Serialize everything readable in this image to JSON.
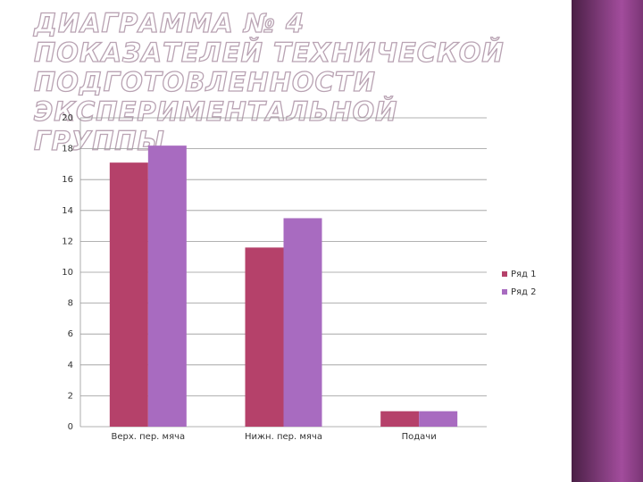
{
  "chart_data": {
    "type": "bar",
    "title": "ДИАГРАММА № 4 ПОКАЗАТЕЛЕЙ ТЕХНИЧЕСКОЙ ПОДГОТОВЛЕННОСТИ ЭКСПЕРИМЕНТАЛЬНОЙ ГРУППЫ",
    "categories": [
      "Верх. пер. мяча",
      "Нижн. пер. мяча",
      "Подачи"
    ],
    "series": [
      {
        "name": "Ряд 1",
        "color": "#b5416a",
        "values": [
          17.1,
          11.6,
          1
        ]
      },
      {
        "name": "Ряд 2",
        "color": "#a86bc0",
        "values": [
          18.2,
          13.5,
          1
        ]
      }
    ],
    "ylim": [
      0,
      20
    ],
    "yticks": [
      0,
      2,
      4,
      6,
      8,
      10,
      12,
      14,
      16,
      18,
      20
    ],
    "grid": true,
    "legend": "right"
  }
}
